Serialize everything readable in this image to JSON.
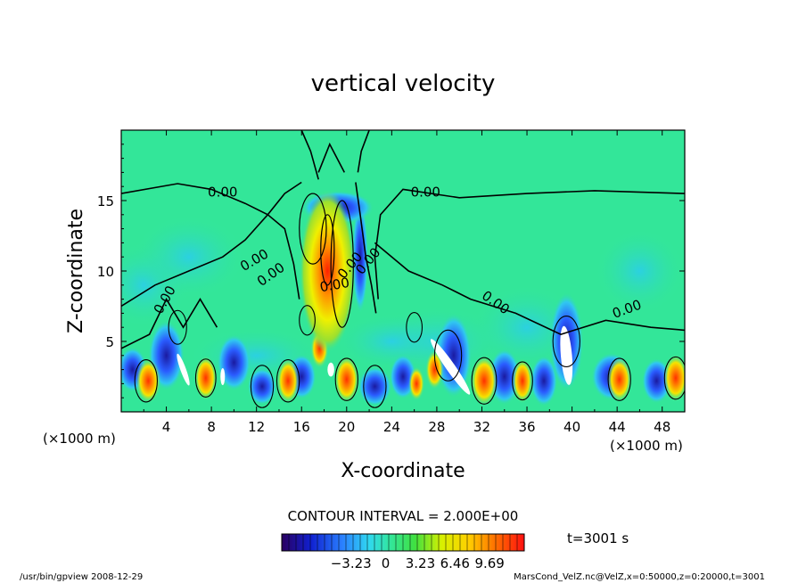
{
  "chart_data": {
    "type": "heatmap",
    "title": "vertical velocity",
    "xlabel": "X-coordinate",
    "ylabel": "Z-coordinate",
    "x_unit": "(×1000 m)",
    "x_unit_right": "(×1000 m)",
    "xlim": [
      0,
      50
    ],
    "ylim": [
      0,
      20
    ],
    "x_ticks": [
      "4",
      "8",
      "12",
      "16",
      "20",
      "24",
      "28",
      "32",
      "36",
      "40",
      "44",
      "48"
    ],
    "y_ticks": [
      "5",
      "10",
      "15"
    ],
    "contour_labels": [
      "0.00",
      "0.00",
      "0.00",
      "0.00",
      "0.00",
      "0.00",
      "0.00",
      "0.00",
      "0.00",
      "0.00"
    ],
    "contour_interval": "CONTOUR INTERVAL = 2.000E+00",
    "colorbar_ticks": [
      "−3.23",
      "0",
      "3.23",
      "6.46",
      "9.69"
    ],
    "colorbar_range": [
      -9.69,
      12.92
    ],
    "time_label": "t=3001 s",
    "footer_left": "/usr/bin/gpview  2008-12-29",
    "footer_right": "MarsCond_VelZ.nc@VelZ,x=0:50000,z=0:20000,t=3001",
    "colors": {
      "background_field": "#33e699",
      "plume_core": "#ff4000",
      "downdraft": "#2a3cff"
    }
  }
}
